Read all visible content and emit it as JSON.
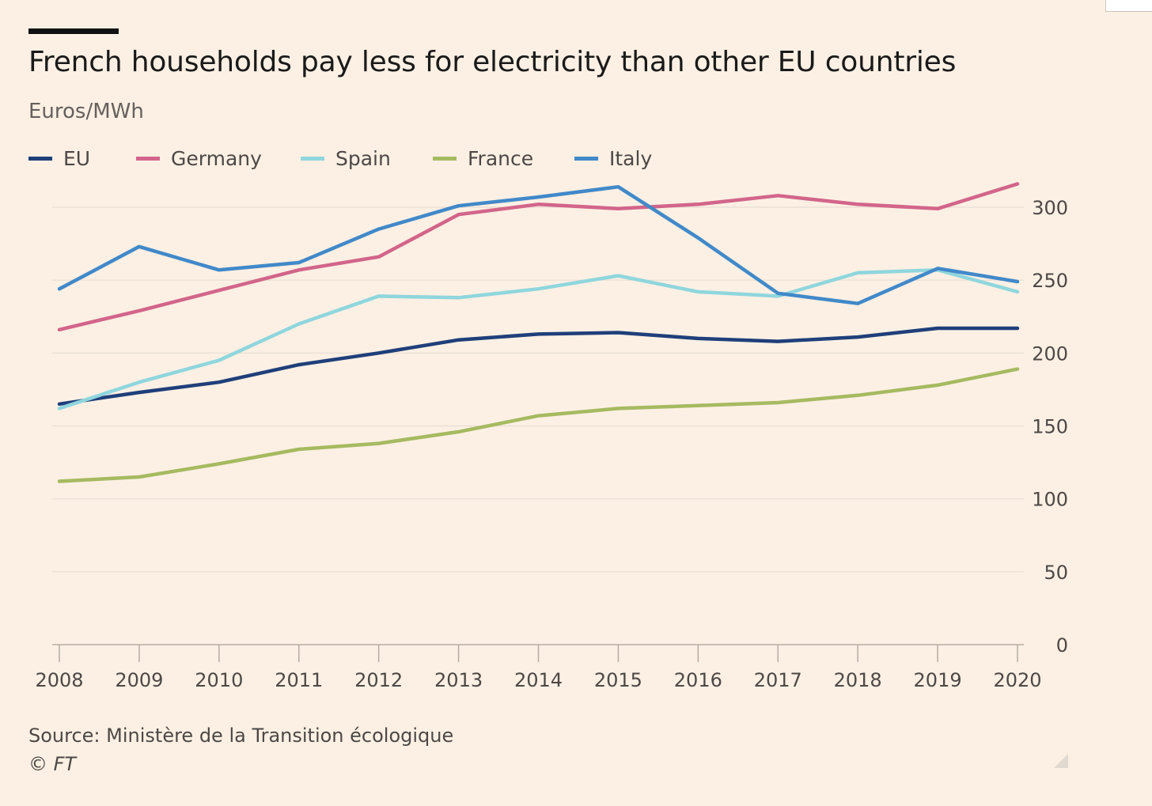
{
  "chart_data": {
    "type": "line",
    "title": "French households pay less for electricity than other EU countries",
    "ylabel": "Euros/MWh",
    "xlabel": "",
    "x": [
      "2008",
      "2009",
      "2010",
      "2011",
      "2012",
      "2013",
      "2014",
      "2015",
      "2016",
      "2017",
      "2018",
      "2019",
      "2020"
    ],
    "ylim": [
      0,
      300
    ],
    "yticks": [
      0,
      50,
      100,
      150,
      200,
      250,
      300
    ],
    "y_axis_side": "right",
    "legend_position": "top-left",
    "series": [
      {
        "name": "EU",
        "color": "#1f3f7a",
        "values": [
          165,
          173,
          180,
          192,
          200,
          209,
          213,
          214,
          210,
          208,
          211,
          217,
          217
        ]
      },
      {
        "name": "Germany",
        "color": "#d2658a",
        "values": [
          216,
          229,
          243,
          257,
          266,
          295,
          302,
          299,
          302,
          308,
          302,
          299,
          316
        ]
      },
      {
        "name": "Spain",
        "color": "#8fd6dd",
        "values": [
          162,
          180,
          195,
          220,
          239,
          238,
          244,
          253,
          242,
          239,
          255,
          257,
          242
        ]
      },
      {
        "name": "France",
        "color": "#a6ba60",
        "values": [
          112,
          115,
          124,
          134,
          138,
          146,
          157,
          162,
          164,
          166,
          171,
          178,
          189
        ]
      },
      {
        "name": "Italy",
        "color": "#4189c9",
        "values": [
          244,
          273,
          257,
          262,
          285,
          301,
          307,
          314,
          279,
          241,
          234,
          258,
          249
        ]
      }
    ]
  },
  "source": "Source: Ministère de la Transition écologique",
  "credit": "© FT"
}
